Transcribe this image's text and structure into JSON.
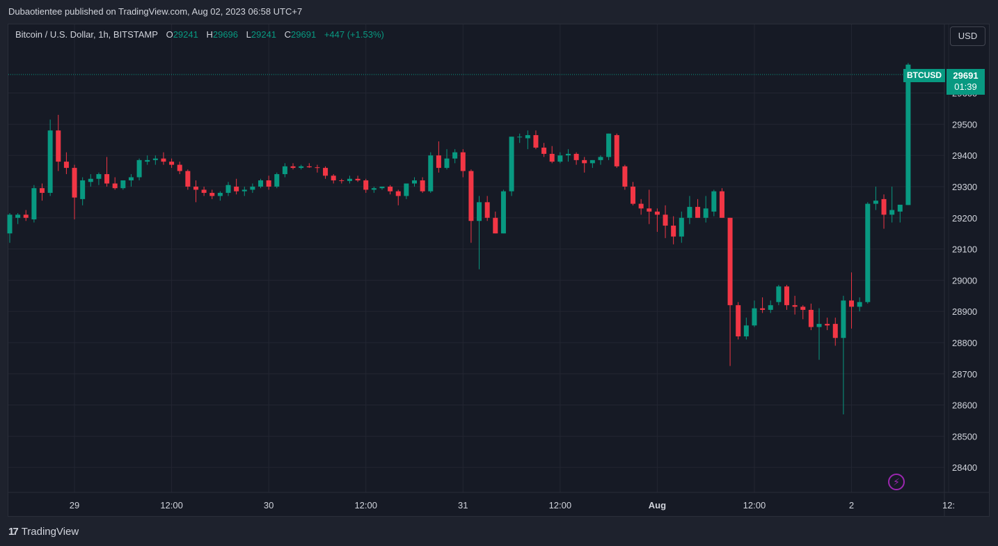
{
  "header": {
    "published": "Dubaotientee published on TradingView.com, Aug 02, 2023 06:58 UTC+7"
  },
  "legend": {
    "symbol": "Bitcoin / U.S. Dollar, 1h, BITSTAMP",
    "o_label": "O",
    "o_value": "29241",
    "h_label": "H",
    "h_value": "29696",
    "l_label": "L",
    "l_value": "29241",
    "c_label": "C",
    "c_value": "29691",
    "change": "+447 (+1.53%)"
  },
  "currency_button": "USD",
  "last_price": {
    "symbol": "BTCUSD",
    "price": "29691",
    "countdown": "01:39"
  },
  "footer": {
    "brand": "TradingView",
    "logo": "17"
  },
  "colors": {
    "up": "#089981",
    "down": "#f23645",
    "background": "#161a25",
    "grid": "#232632"
  },
  "chart_data": {
    "type": "candlestick",
    "interval": "1h",
    "ylim": [
      28320,
      29820
    ],
    "y_ticks": [
      28400,
      28500,
      28600,
      28700,
      28800,
      28900,
      29000,
      29100,
      29200,
      29300,
      29400,
      29500,
      29600
    ],
    "x_ticks": [
      {
        "label": "29",
        "bold": false
      },
      {
        "label": "12:00",
        "bold": false
      },
      {
        "label": "30",
        "bold": false
      },
      {
        "label": "12:00",
        "bold": false
      },
      {
        "label": "31",
        "bold": false
      },
      {
        "label": "12:00",
        "bold": false
      },
      {
        "label": "Aug",
        "bold": true
      },
      {
        "label": "12:00",
        "bold": false
      },
      {
        "label": "2",
        "bold": false
      },
      {
        "label": "12:",
        "bold": false
      }
    ],
    "candles": [
      [
        29150,
        29215,
        29120,
        29210
      ],
      [
        29200,
        29215,
        29180,
        29210
      ],
      [
        29210,
        29225,
        29190,
        29200
      ],
      [
        29195,
        29305,
        29185,
        29295
      ],
      [
        29295,
        29310,
        29255,
        29280
      ],
      [
        29280,
        29515,
        29270,
        29480
      ],
      [
        29480,
        29530,
        29350,
        29380
      ],
      [
        29380,
        29410,
        29340,
        29360
      ],
      [
        29360,
        29370,
        29195,
        29265
      ],
      [
        29260,
        29330,
        29240,
        29320
      ],
      [
        29315,
        29340,
        29300,
        29325
      ],
      [
        29325,
        29345,
        29305,
        29340
      ],
      [
        29340,
        29395,
        29300,
        29310
      ],
      [
        29310,
        29330,
        29290,
        29295
      ],
      [
        29295,
        29320,
        29290,
        29320
      ],
      [
        29320,
        29340,
        29300,
        29330
      ],
      [
        29330,
        29390,
        29320,
        29385
      ],
      [
        29380,
        29400,
        29370,
        29385
      ],
      [
        29385,
        29400,
        29370,
        29390
      ],
      [
        29390,
        29410,
        29370,
        29380
      ],
      [
        29380,
        29390,
        29360,
        29370
      ],
      [
        29370,
        29380,
        29340,
        29350
      ],
      [
        29350,
        29355,
        29290,
        29300
      ],
      [
        29300,
        29320,
        29250,
        29290
      ],
      [
        29290,
        29300,
        29270,
        29280
      ],
      [
        29280,
        29290,
        29260,
        29270
      ],
      [
        29270,
        29285,
        29255,
        29280
      ],
      [
        29280,
        29315,
        29270,
        29305
      ],
      [
        29300,
        29325,
        29275,
        29285
      ],
      [
        29285,
        29300,
        29270,
        29290
      ],
      [
        29290,
        29310,
        29280,
        29300
      ],
      [
        29300,
        29325,
        29295,
        29320
      ],
      [
        29320,
        29335,
        29290,
        29300
      ],
      [
        29300,
        29345,
        29295,
        29340
      ],
      [
        29340,
        29375,
        29330,
        29365
      ],
      [
        29365,
        29375,
        29355,
        29360
      ],
      [
        29360,
        29370,
        29355,
        29365
      ],
      [
        29365,
        29375,
        29360,
        29362
      ],
      [
        29362,
        29370,
        29345,
        29360
      ],
      [
        29360,
        29365,
        29325,
        29335
      ],
      [
        29335,
        29340,
        29310,
        29320
      ],
      [
        29320,
        29325,
        29310,
        29318
      ],
      [
        29318,
        29335,
        29310,
        29325
      ],
      [
        29325,
        29335,
        29315,
        29320
      ],
      [
        29320,
        29325,
        29280,
        29290
      ],
      [
        29290,
        29300,
        29280,
        29295
      ],
      [
        29295,
        29300,
        29290,
        29300
      ],
      [
        29300,
        29305,
        29275,
        29285
      ],
      [
        29285,
        29290,
        29240,
        29270
      ],
      [
        29270,
        29310,
        29260,
        29310
      ],
      [
        29310,
        29330,
        29300,
        29320
      ],
      [
        29320,
        29330,
        29280,
        29285
      ],
      [
        29285,
        29410,
        29280,
        29400
      ],
      [
        29400,
        29445,
        29345,
        29360
      ],
      [
        29360,
        29420,
        29355,
        29390
      ],
      [
        29390,
        29420,
        29375,
        29410
      ],
      [
        29410,
        29420,
        29330,
        29350
      ],
      [
        29350,
        29355,
        29120,
        29190
      ],
      [
        29190,
        29270,
        29035,
        29250
      ],
      [
        29250,
        29270,
        29190,
        29200
      ],
      [
        29200,
        29220,
        29150,
        29150
      ],
      [
        29150,
        29290,
        29150,
        29285
      ],
      [
        29285,
        29460,
        29270,
        29460
      ],
      [
        29460,
        29470,
        29440,
        29460
      ],
      [
        29455,
        29480,
        29420,
        29465
      ],
      [
        29465,
        29480,
        29420,
        29425
      ],
      [
        29425,
        29440,
        29395,
        29405
      ],
      [
        29405,
        29430,
        29375,
        29380
      ],
      [
        29380,
        29410,
        29375,
        29400
      ],
      [
        29400,
        29420,
        29380,
        29405
      ],
      [
        29405,
        29410,
        29370,
        29385
      ],
      [
        29385,
        29395,
        29345,
        29375
      ],
      [
        29375,
        29385,
        29360,
        29385
      ],
      [
        29385,
        29400,
        29370,
        29395
      ],
      [
        29395,
        29470,
        29385,
        29470
      ],
      [
        29465,
        29470,
        29360,
        29365
      ],
      [
        29365,
        29370,
        29290,
        29300
      ],
      [
        29300,
        29315,
        29240,
        29245
      ],
      [
        29245,
        29260,
        29210,
        29230
      ],
      [
        29230,
        29290,
        29180,
        29220
      ],
      [
        29220,
        29230,
        29155,
        29210
      ],
      [
        29210,
        29240,
        29135,
        29175
      ],
      [
        29175,
        29205,
        29115,
        29140
      ],
      [
        29140,
        29220,
        29120,
        29200
      ],
      [
        29200,
        29270,
        29180,
        29235
      ],
      [
        29235,
        29260,
        29200,
        29200
      ],
      [
        29200,
        29270,
        29185,
        29230
      ],
      [
        29220,
        29290,
        29205,
        29285
      ],
      [
        29285,
        29295,
        29200,
        29200
      ],
      [
        29200,
        29200,
        28725,
        28920
      ],
      [
        28920,
        28930,
        28810,
        28820
      ],
      [
        28820,
        28880,
        28810,
        28855
      ],
      [
        28855,
        28935,
        28850,
        28910
      ],
      [
        28910,
        28945,
        28895,
        28905
      ],
      [
        28905,
        28935,
        28895,
        28920
      ],
      [
        28930,
        28985,
        28920,
        28980
      ],
      [
        28980,
        28985,
        28905,
        28920
      ],
      [
        28920,
        28950,
        28890,
        28915
      ],
      [
        28915,
        28920,
        28875,
        28905
      ],
      [
        28905,
        28925,
        28840,
        28850
      ],
      [
        28850,
        28910,
        28745,
        28860
      ],
      [
        28860,
        28880,
        28840,
        28855
      ],
      [
        28860,
        28880,
        28790,
        28815
      ],
      [
        28815,
        28950,
        28570,
        28935
      ],
      [
        28935,
        29025,
        28845,
        28915
      ],
      [
        28915,
        28945,
        28900,
        28930
      ],
      [
        28930,
        29250,
        28925,
        29245
      ],
      [
        29245,
        29300,
        29225,
        29255
      ],
      [
        29260,
        29275,
        29165,
        29210
      ],
      [
        29210,
        29300,
        29185,
        29225
      ],
      [
        29220,
        29235,
        29185,
        29242
      ],
      [
        29241,
        29696,
        29241,
        29691
      ]
    ]
  }
}
